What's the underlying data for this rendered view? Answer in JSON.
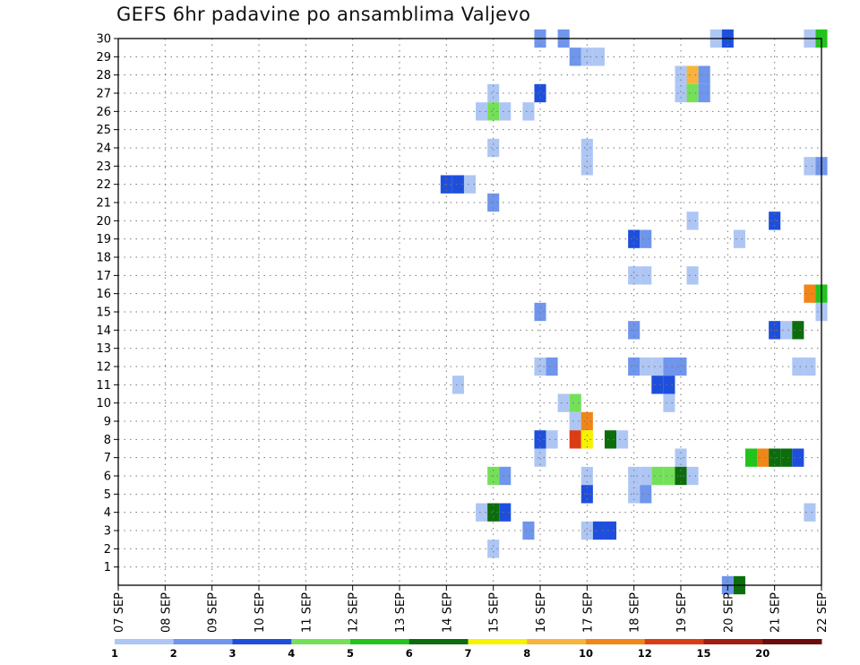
{
  "chart_data": {
    "type": "heatmap",
    "title": "GEFS 6hr padavine po ansamblima Valjevo",
    "x_axis": {
      "start": "07 SEP",
      "end": "22 SEP",
      "tick_labels": [
        "07 SEP",
        "08 SEP",
        "09 SEP",
        "10 SEP",
        "11 SEP",
        "12 SEP",
        "13 SEP",
        "14 SEP",
        "15 SEP",
        "16 SEP",
        "17 SEP",
        "18 SEP",
        "19 SEP",
        "20 SEP",
        "21 SEP",
        "22 SEP"
      ],
      "step_hours": 6
    },
    "y_axis": {
      "range": [
        0,
        30
      ],
      "tick_labels": [
        "1",
        "2",
        "3",
        "4",
        "5",
        "6",
        "7",
        "8",
        "9",
        "10",
        "11",
        "12",
        "13",
        "14",
        "15",
        "16",
        "17",
        "18",
        "19",
        "20",
        "21",
        "22",
        "23",
        "24",
        "25",
        "26",
        "27",
        "28",
        "29",
        "30"
      ]
    },
    "grid": true,
    "colorbar": {
      "labels": [
        "1",
        "2",
        "3",
        "4",
        "5",
        "6",
        "7",
        "8",
        "10",
        "12",
        "15",
        "20"
      ],
      "colors": [
        "#aec6f4",
        "#6f95ec",
        "#1e4fdc",
        "#74e05a",
        "#23c31e",
        "#0b6d0b",
        "#f6f200",
        "#f7b33c",
        "#f08618",
        "#dc3c14",
        "#a01d10",
        "#6b0b0b"
      ]
    },
    "cells": [
      [
        30,
        "16 SEP",
        0,
        1
      ],
      [
        30,
        "16 SEP",
        2,
        1
      ],
      [
        30,
        "19 SEP",
        3,
        0
      ],
      [
        30,
        "20 SEP",
        0,
        2
      ],
      [
        30,
        "21 SEP",
        3,
        0
      ],
      [
        30,
        "22 SEP",
        0,
        4
      ],
      [
        29,
        "16 SEP",
        3,
        1
      ],
      [
        29,
        "17 SEP",
        0,
        0
      ],
      [
        29,
        "17 SEP",
        1,
        0
      ],
      [
        28,
        "19 SEP",
        0,
        0
      ],
      [
        28,
        "19 SEP",
        1,
        7
      ],
      [
        28,
        "19 SEP",
        2,
        1
      ],
      [
        27,
        "15 SEP",
        0,
        0
      ],
      [
        27,
        "16 SEP",
        0,
        2
      ],
      [
        27,
        "19 SEP",
        0,
        0
      ],
      [
        27,
        "19 SEP",
        1,
        3
      ],
      [
        27,
        "19 SEP",
        2,
        1
      ],
      [
        26,
        "14 SEP",
        3,
        0
      ],
      [
        26,
        "15 SEP",
        0,
        3
      ],
      [
        26,
        "15 SEP",
        1,
        0
      ],
      [
        26,
        "15 SEP",
        3,
        0
      ],
      [
        24,
        "15 SEP",
        0,
        0
      ],
      [
        24,
        "17 SEP",
        0,
        0
      ],
      [
        23,
        "17 SEP",
        0,
        0
      ],
      [
        23,
        "21 SEP",
        3,
        0
      ],
      [
        23,
        "22 SEP",
        0,
        1
      ],
      [
        22,
        "14 SEP",
        0,
        2
      ],
      [
        22,
        "14 SEP",
        1,
        2
      ],
      [
        22,
        "14 SEP",
        2,
        0
      ],
      [
        21,
        "15 SEP",
        0,
        1
      ],
      [
        20,
        "19 SEP",
        1,
        0
      ],
      [
        20,
        "21 SEP",
        0,
        2
      ],
      [
        19,
        "18 SEP",
        0,
        2
      ],
      [
        19,
        "18 SEP",
        1,
        1
      ],
      [
        19,
        "20 SEP",
        1,
        0
      ],
      [
        17,
        "18 SEP",
        0,
        0
      ],
      [
        17,
        "18 SEP",
        1,
        0
      ],
      [
        17,
        "19 SEP",
        1,
        0
      ],
      [
        16,
        "21 SEP",
        3,
        8
      ],
      [
        16,
        "22 SEP",
        0,
        4
      ],
      [
        15,
        "16 SEP",
        0,
        1
      ],
      [
        15,
        "22 SEP",
        0,
        0
      ],
      [
        14,
        "18 SEP",
        0,
        1
      ],
      [
        14,
        "21 SEP",
        0,
        2
      ],
      [
        14,
        "21 SEP",
        1,
        0
      ],
      [
        14,
        "21 SEP",
        2,
        5
      ],
      [
        12,
        "16 SEP",
        0,
        0
      ],
      [
        12,
        "16 SEP",
        1,
        1
      ],
      [
        12,
        "18 SEP",
        0,
        1
      ],
      [
        12,
        "18 SEP",
        1,
        0
      ],
      [
        12,
        "18 SEP",
        2,
        0
      ],
      [
        12,
        "18 SEP",
        3,
        1
      ],
      [
        12,
        "19 SEP",
        0,
        1
      ],
      [
        12,
        "21 SEP",
        2,
        0
      ],
      [
        12,
        "21 SEP",
        3,
        0
      ],
      [
        11,
        "14 SEP",
        1,
        0
      ],
      [
        11,
        "18 SEP",
        2,
        2
      ],
      [
        11,
        "18 SEP",
        3,
        2
      ],
      [
        10,
        "16 SEP",
        2,
        0
      ],
      [
        10,
        "16 SEP",
        3,
        3
      ],
      [
        10,
        "18 SEP",
        3,
        0
      ],
      [
        9,
        "16 SEP",
        3,
        0
      ],
      [
        9,
        "16 SEP",
        3,
        0
      ],
      [
        9,
        "17 SEP",
        0,
        8
      ],
      [
        8,
        "16 SEP",
        0,
        2
      ],
      [
        8,
        "16 SEP",
        1,
        0
      ],
      [
        8,
        "16 SEP",
        3,
        9
      ],
      [
        8,
        "17 SEP",
        0,
        6
      ],
      [
        8,
        "17 SEP",
        2,
        5
      ],
      [
        8,
        "17 SEP",
        3,
        0
      ],
      [
        7,
        "16 SEP",
        0,
        0
      ],
      [
        7,
        "19 SEP",
        0,
        0
      ],
      [
        7,
        "20 SEP",
        2,
        4
      ],
      [
        7,
        "20 SEP",
        3,
        8
      ],
      [
        7,
        "21 SEP",
        0,
        5
      ],
      [
        7,
        "21 SEP",
        1,
        5
      ],
      [
        7,
        "21 SEP",
        2,
        2
      ],
      [
        6,
        "15 SEP",
        0,
        3
      ],
      [
        6,
        "15 SEP",
        1,
        1
      ],
      [
        6,
        "17 SEP",
        0,
        0
      ],
      [
        6,
        "18 SEP",
        0,
        0
      ],
      [
        6,
        "18 SEP",
        1,
        0
      ],
      [
        6,
        "18 SEP",
        2,
        3
      ],
      [
        6,
        "18 SEP",
        3,
        3
      ],
      [
        6,
        "19 SEP",
        0,
        5
      ],
      [
        6,
        "19 SEP",
        1,
        0
      ],
      [
        5,
        "17 SEP",
        0,
        2
      ],
      [
        5,
        "18 SEP",
        0,
        0
      ],
      [
        5,
        "18 SEP",
        1,
        1
      ],
      [
        4,
        "14 SEP",
        3,
        0
      ],
      [
        4,
        "15 SEP",
        0,
        5
      ],
      [
        4,
        "15 SEP",
        1,
        2
      ],
      [
        4,
        "21 SEP",
        3,
        0
      ],
      [
        3,
        "15 SEP",
        3,
        1
      ],
      [
        3,
        "17 SEP",
        0,
        0
      ],
      [
        3,
        "17 SEP",
        1,
        2
      ],
      [
        3,
        "17 SEP",
        2,
        2
      ],
      [
        2,
        "15 SEP",
        0,
        0
      ],
      [
        0,
        "20 SEP",
        0,
        1
      ],
      [
        0,
        "20 SEP",
        1,
        5
      ]
    ]
  }
}
